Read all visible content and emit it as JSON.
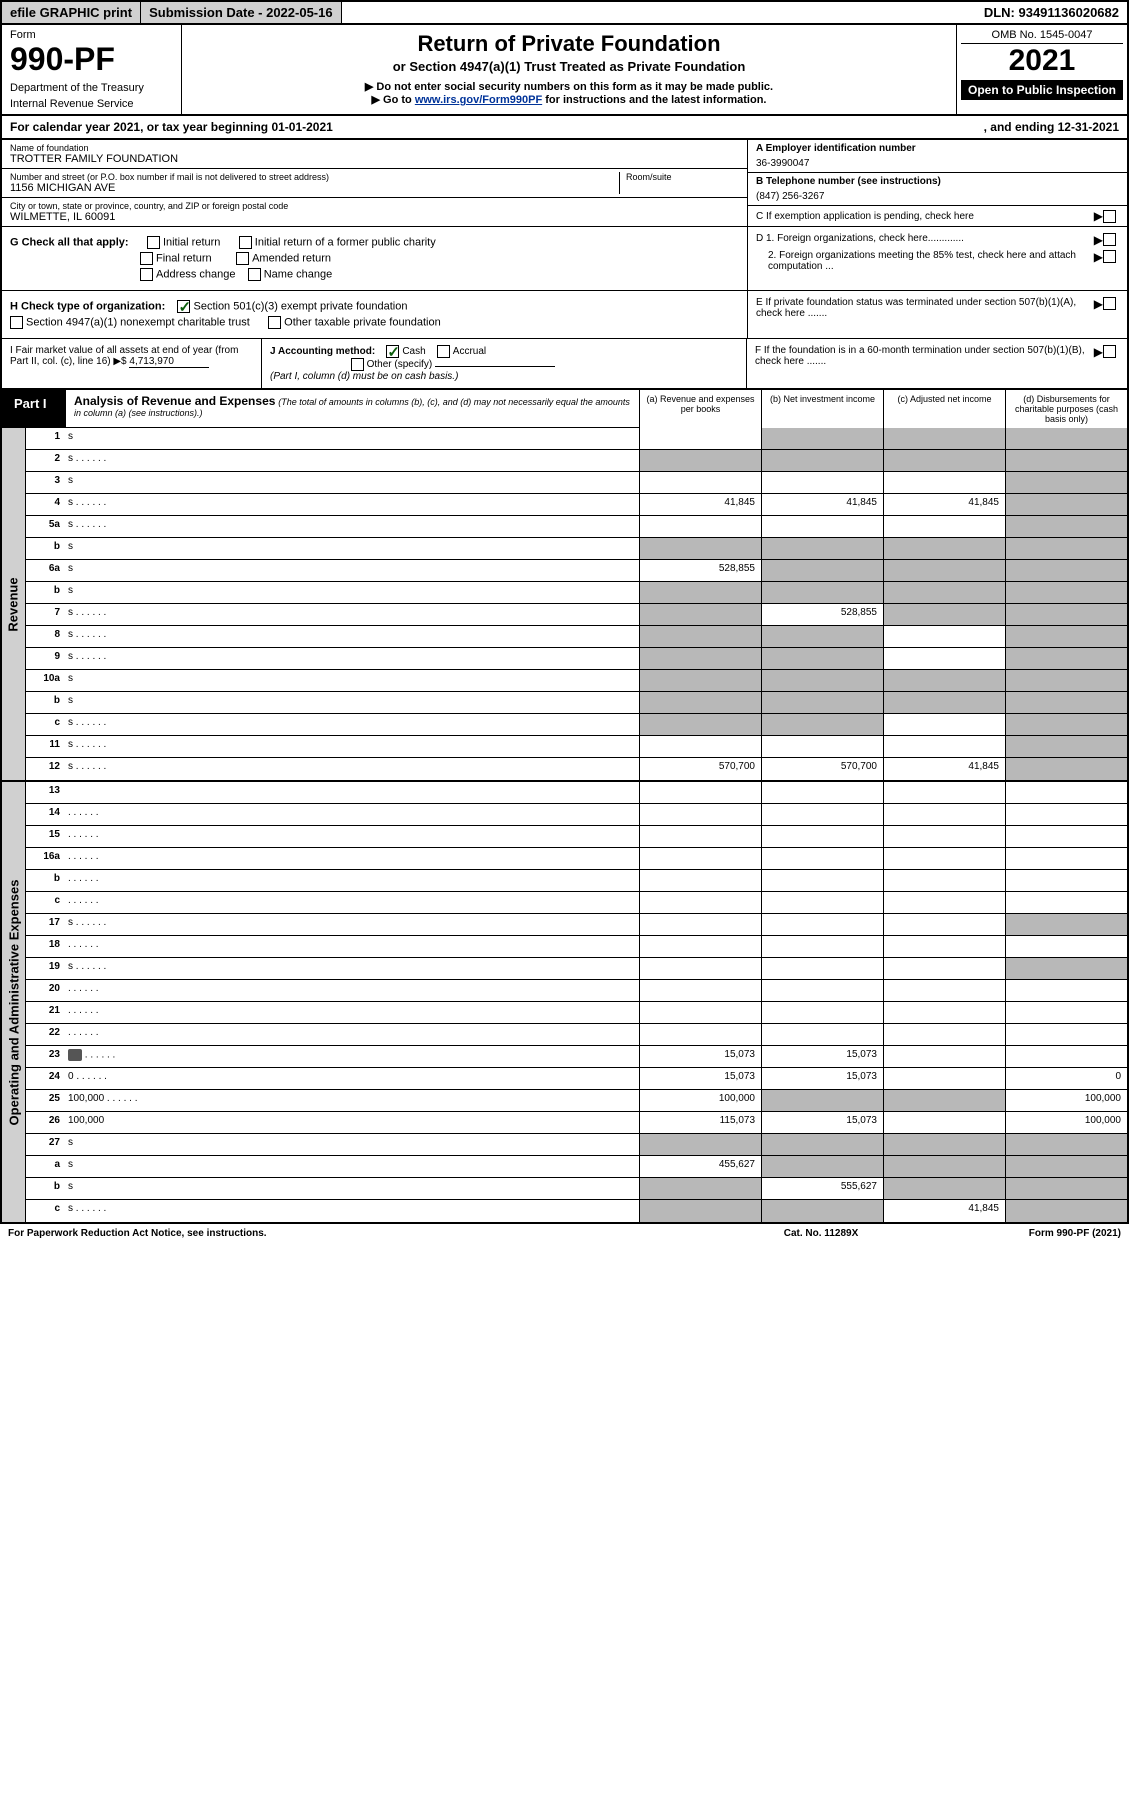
{
  "topbar": {
    "efile": "efile GRAPHIC print",
    "submission": "Submission Date - 2022-05-16",
    "dln": "DLN: 93491136020682"
  },
  "header": {
    "form_label": "Form",
    "form_number": "990-PF",
    "dept1": "Department of the Treasury",
    "dept2": "Internal Revenue Service",
    "title": "Return of Private Foundation",
    "sub1": "or Section 4947(a)(1) Trust Treated as Private Foundation",
    "sub2": "▶ Do not enter social security numbers on this form as it may be made public.",
    "sub3_pre": "▶ Go to ",
    "sub3_link": "www.irs.gov/Form990PF",
    "sub3_post": " for instructions and the latest information.",
    "omb": "OMB No. 1545-0047",
    "year": "2021",
    "open": "Open to Public Inspection"
  },
  "calyear": {
    "left": "For calendar year 2021, or tax year beginning 01-01-2021",
    "right": ", and ending 12-31-2021"
  },
  "info": {
    "name_lbl": "Name of foundation",
    "name_val": "TROTTER FAMILY FOUNDATION",
    "addr_lbl": "Number and street (or P.O. box number if mail is not delivered to street address)",
    "addr_val": "1156 MICHIGAN AVE",
    "room_lbl": "Room/suite",
    "city_lbl": "City or town, state or province, country, and ZIP or foreign postal code",
    "city_val": "WILMETTE, IL  60091",
    "ein_lbl": "A Employer identification number",
    "ein_val": "36-3990047",
    "tel_lbl": "B Telephone number (see instructions)",
    "tel_val": "(847) 256-3267",
    "c_lbl": "C If exemption application is pending, check here",
    "d1_lbl": "D 1. Foreign organizations, check here.............",
    "d2_lbl": "2. Foreign organizations meeting the 85% test, check here and attach computation ...",
    "e_lbl": "E  If private foundation status was terminated under section 507(b)(1)(A), check here .......",
    "f_lbl": "F  If the foundation is in a 60-month termination under section 507(b)(1)(B), check here ......."
  },
  "checks": {
    "g_lbl": "G Check all that apply:",
    "initial": "Initial return",
    "initial_former": "Initial return of a former public charity",
    "final": "Final return",
    "amended": "Amended return",
    "addr_change": "Address change",
    "name_change": "Name change",
    "h_lbl": "H Check type of organization:",
    "h1": "Section 501(c)(3) exempt private foundation",
    "h2": "Section 4947(a)(1) nonexempt charitable trust",
    "h3": "Other taxable private foundation",
    "i_lbl": "I Fair market value of all assets at end of year (from Part II, col. (c), line 16) ▶$",
    "i_val": "4,713,970",
    "j_lbl": "J Accounting method:",
    "j_cash": "Cash",
    "j_accrual": "Accrual",
    "j_other": "Other (specify)",
    "j_note": "(Part I, column (d) must be on cash basis.)"
  },
  "part1": {
    "label": "Part I",
    "title": "Analysis of Revenue and Expenses",
    "note": "(The total of amounts in columns (b), (c), and (d) may not necessarily equal the amounts in column (a) (see instructions).)",
    "col_a": "(a)   Revenue and expenses per books",
    "col_b": "(b)   Net investment income",
    "col_c": "(c)   Adjusted net income",
    "col_d": "(d)   Disbursements for charitable purposes (cash basis only)"
  },
  "sidebars": {
    "revenue": "Revenue",
    "expenses": "Operating and Administrative Expenses"
  },
  "rows": [
    {
      "n": "1",
      "d": "s",
      "a": "",
      "b": "s",
      "c": "s"
    },
    {
      "n": "2",
      "d": "s",
      "a": "s",
      "b": "s",
      "c": "s",
      "dots": true
    },
    {
      "n": "3",
      "d": "s",
      "a": "",
      "b": "",
      "c": ""
    },
    {
      "n": "4",
      "d": "s",
      "a": "41,845",
      "b": "41,845",
      "c": "41,845",
      "dots": true
    },
    {
      "n": "5a",
      "d": "s",
      "a": "",
      "b": "",
      "c": "",
      "dots": true
    },
    {
      "n": "b",
      "d": "s",
      "a": "s",
      "b": "s",
      "c": "s"
    },
    {
      "n": "6a",
      "d": "s",
      "a": "528,855",
      "b": "s",
      "c": "s"
    },
    {
      "n": "b",
      "d": "s",
      "a": "s",
      "b": "s",
      "c": "s"
    },
    {
      "n": "7",
      "d": "s",
      "a": "s",
      "b": "528,855",
      "c": "s",
      "dots": true
    },
    {
      "n": "8",
      "d": "s",
      "a": "s",
      "b": "s",
      "c": "",
      "dots": true
    },
    {
      "n": "9",
      "d": "s",
      "a": "s",
      "b": "s",
      "c": "",
      "dots": true
    },
    {
      "n": "10a",
      "d": "s",
      "a": "s",
      "b": "s",
      "c": "s"
    },
    {
      "n": "b",
      "d": "s",
      "a": "s",
      "b": "s",
      "c": "s"
    },
    {
      "n": "c",
      "d": "s",
      "a": "s",
      "b": "s",
      "c": "",
      "dots": true
    },
    {
      "n": "11",
      "d": "s",
      "a": "",
      "b": "",
      "c": "",
      "dots": true
    },
    {
      "n": "12",
      "d": "s",
      "a": "570,700",
      "b": "570,700",
      "c": "41,845",
      "dots": true
    }
  ],
  "exp_rows": [
    {
      "n": "13",
      "d": "",
      "a": "",
      "b": "",
      "c": ""
    },
    {
      "n": "14",
      "d": "",
      "a": "",
      "b": "",
      "c": "",
      "dots": true
    },
    {
      "n": "15",
      "d": "",
      "a": "",
      "b": "",
      "c": "",
      "dots": true
    },
    {
      "n": "16a",
      "d": "",
      "a": "",
      "b": "",
      "c": "",
      "dots": true
    },
    {
      "n": "b",
      "d": "",
      "a": "",
      "b": "",
      "c": "",
      "dots": true
    },
    {
      "n": "c",
      "d": "",
      "a": "",
      "b": "",
      "c": "",
      "dots": true
    },
    {
      "n": "17",
      "d": "s",
      "a": "",
      "b": "",
      "c": "",
      "dots": true
    },
    {
      "n": "18",
      "d": "",
      "a": "",
      "b": "",
      "c": "",
      "dots": true
    },
    {
      "n": "19",
      "d": "s",
      "a": "",
      "b": "",
      "c": "",
      "dots": true
    },
    {
      "n": "20",
      "d": "",
      "a": "",
      "b": "",
      "c": "",
      "dots": true
    },
    {
      "n": "21",
      "d": "",
      "a": "",
      "b": "",
      "c": "",
      "dots": true
    },
    {
      "n": "22",
      "d": "",
      "a": "",
      "b": "",
      "c": "",
      "dots": true
    },
    {
      "n": "23",
      "d": "",
      "a": "15,073",
      "b": "15,073",
      "c": "",
      "dots": true,
      "icon": true
    },
    {
      "n": "24",
      "d": "0",
      "a": "15,073",
      "b": "15,073",
      "c": "",
      "dots": true
    },
    {
      "n": "25",
      "d": "100,000",
      "a": "100,000",
      "b": "s",
      "c": "s",
      "dots": true
    },
    {
      "n": "26",
      "d": "100,000",
      "a": "115,073",
      "b": "15,073",
      "c": ""
    },
    {
      "n": "27",
      "d": "s",
      "a": "s",
      "b": "s",
      "c": "s"
    },
    {
      "n": "a",
      "d": "s",
      "a": "455,627",
      "b": "s",
      "c": "s"
    },
    {
      "n": "b",
      "d": "s",
      "a": "s",
      "b": "555,627",
      "c": "s"
    },
    {
      "n": "c",
      "d": "s",
      "a": "s",
      "b": "s",
      "c": "41,845",
      "dots": true
    }
  ],
  "footer": {
    "left": "For Paperwork Reduction Act Notice, see instructions.",
    "mid": "Cat. No. 11289X",
    "right": "Form 990-PF (2021)"
  },
  "colors": {
    "shaded": "#b8b8b8",
    "sidebar": "#d0d0d0",
    "link": "#003399",
    "check": "#0a5c0a"
  }
}
